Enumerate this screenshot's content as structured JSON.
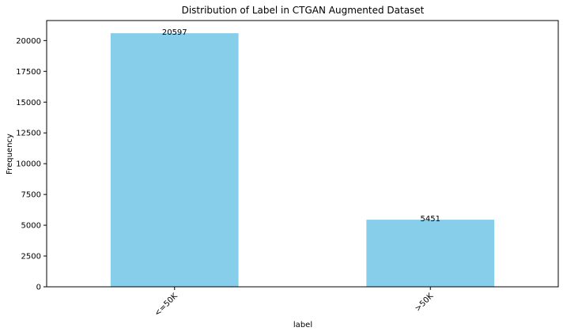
{
  "chart_data": {
    "type": "bar",
    "title": "Distribution of Label in CTGAN Augmented Dataset",
    "xlabel": "label",
    "ylabel": "Frequency",
    "categories": [
      "<=50K",
      ">50K"
    ],
    "values": [
      20597,
      5451
    ],
    "data_labels": [
      "20597",
      "5451"
    ],
    "ylim": [
      0,
      21627
    ],
    "yticks": [
      0,
      2500,
      5000,
      7500,
      10000,
      12500,
      15000,
      17500,
      20000
    ],
    "ytick_labels": [
      "0",
      "2500",
      "5000",
      "7500",
      "10000",
      "12500",
      "15000",
      "17500",
      "20000"
    ],
    "xtick_rotation": 45,
    "grid": false,
    "bar_color": "#87ceeb"
  }
}
